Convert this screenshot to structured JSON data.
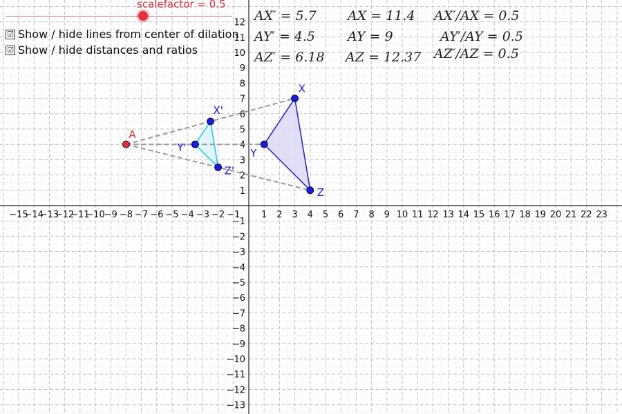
{
  "slider": {
    "label": "scalefactor = 0.5",
    "value": 0.5,
    "min": 0,
    "max": 1,
    "color": "#e0313c"
  },
  "checkboxes": [
    {
      "label": "Show / hide lines from center of dilation",
      "checked": true,
      "glyph": "☑"
    },
    {
      "label": "Show / hide distances and ratios",
      "checked": true,
      "glyph": "☑"
    }
  ],
  "stats": [
    [
      "AX′ = 5.7",
      "AX = 11.4",
      "AX′/AX = 0.5"
    ],
    [
      "AY′ = 4.5",
      "AY = 9",
      "AY′/AY = 0.5"
    ],
    [
      "AZ′ = 6.18",
      "AZ = 12.37",
      "AZ′/AZ = 0.5"
    ]
  ],
  "axes": {
    "x_range": [
      -16,
      24
    ],
    "y_range": [
      -13.5,
      13.5
    ],
    "x_ticks": [
      "−15",
      "−14",
      "−13",
      "−12",
      "−11",
      "−10",
      "−9",
      "−8",
      "−7",
      "−6",
      "−5",
      "−4",
      "−3",
      "−2",
      "−1",
      "1",
      "2",
      "3",
      "4",
      "5",
      "6",
      "7",
      "8",
      "9",
      "10",
      "11",
      "12",
      "13",
      "14",
      "15",
      "16",
      "17",
      "18",
      "19",
      "20",
      "21",
      "22",
      "23"
    ],
    "x_tick_values": [
      -15,
      -14,
      -13,
      -12,
      -11,
      -10,
      -9,
      -8,
      -7,
      -6,
      -5,
      -4,
      -3,
      -2,
      -1,
      1,
      2,
      3,
      4,
      5,
      6,
      7,
      8,
      9,
      10,
      11,
      12,
      13,
      14,
      15,
      16,
      17,
      18,
      19,
      20,
      21,
      22,
      23
    ],
    "y_ticks": [
      "12",
      "11",
      "10",
      "9",
      "8",
      "7",
      "6",
      "5",
      "4",
      "3",
      "2",
      "1",
      "−1",
      "−2",
      "−3",
      "−4",
      "−5",
      "−6",
      "−7",
      "−8",
      "−9",
      "−10",
      "−11",
      "−12",
      "−13"
    ],
    "y_tick_values": [
      12,
      11,
      10,
      9,
      8,
      7,
      6,
      5,
      4,
      3,
      2,
      1,
      -1,
      -2,
      -3,
      -4,
      -5,
      -6,
      -7,
      -8,
      -9,
      -10,
      -11,
      -12,
      -13
    ],
    "grid": true
  },
  "points": {
    "center": {
      "label": "A",
      "x": -8,
      "y": 4,
      "color": "#e0313c"
    },
    "original": [
      {
        "label": "X",
        "x": 3,
        "y": 7
      },
      {
        "label": "Y",
        "x": 1,
        "y": 4
      },
      {
        "label": "Z",
        "x": 4,
        "y": 1
      }
    ],
    "image": [
      {
        "label": "X'",
        "x": -2.5,
        "y": 5.5
      },
      {
        "label": "Y'",
        "x": -3.5,
        "y": 4
      },
      {
        "label": "Z'",
        "x": -2,
        "y": 2.5
      }
    ]
  },
  "colors": {
    "original_stroke": "#2a2ad6",
    "original_fill": "#dcd9f5",
    "image_stroke": "#27c9e8",
    "image_fill": "#d9f4fb",
    "point_fill": "#1c1ce0",
    "dilation_line": "#999999",
    "grid": "#bdbdbd"
  }
}
